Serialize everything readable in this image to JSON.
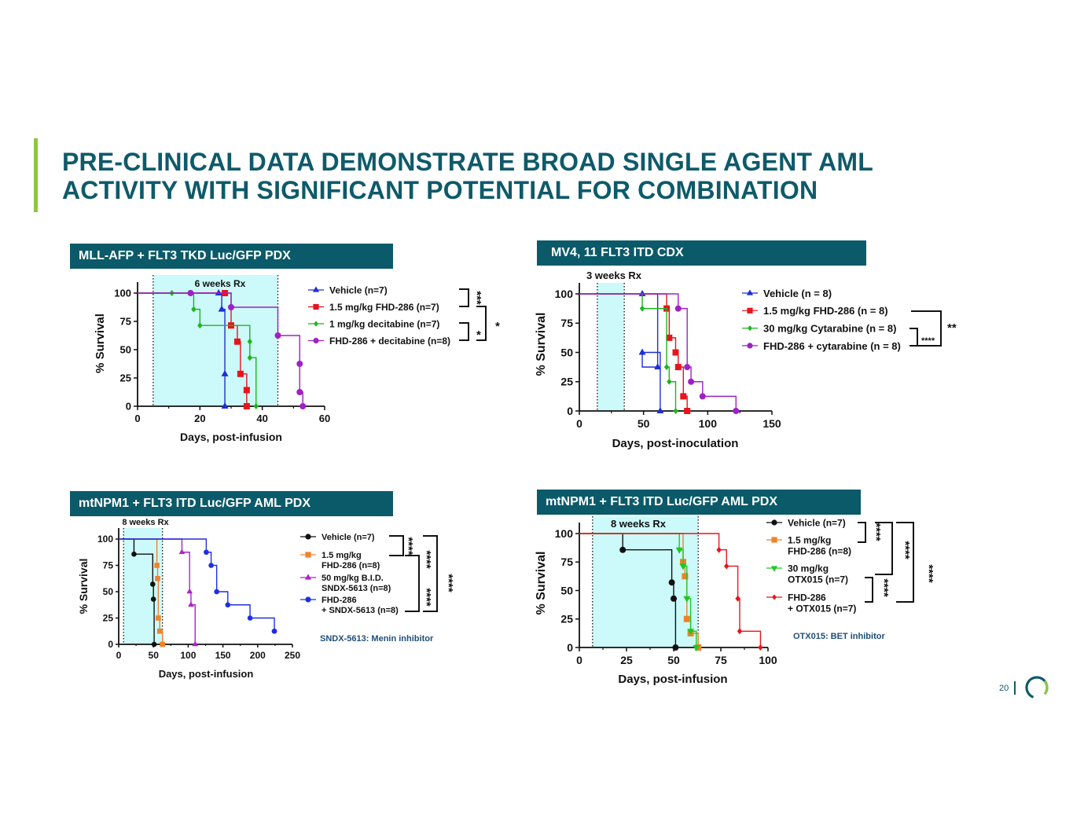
{
  "title": {
    "line1": "PRE-CLINICAL DATA DEMONSTRATE BROAD SINGLE AGENT AML",
    "line2": "ACTIVITY WITH SIGNIFICANT POTENTIAL FOR COMBINATION"
  },
  "panels": {
    "p1": "MLL-AFP + FLT3 TKD Luc/GFP PDX",
    "p2": "MV4, 11 FLT3 ITD CDX",
    "p3": "mtNPM1 + FLT3 ITD Luc/GFP AML PDX",
    "p4": "mtNPM1 + FLT3 ITD Luc/GFP AML PDX"
  },
  "footer": {
    "page_number": "20"
  },
  "colors": {
    "accent": "#8dc63f",
    "brand": "#0b5a6a",
    "shade": "#ccfafa"
  },
  "chart_data": [
    {
      "id": "c1",
      "type": "line",
      "step": true,
      "xlabel": "Days, post-infusion",
      "ylabel": "% Survival",
      "xlim": [
        0,
        60
      ],
      "ylim": [
        0,
        100
      ],
      "xticks": [
        0,
        20,
        40,
        60
      ],
      "yticks": [
        0,
        25,
        50,
        75,
        100
      ],
      "shade": {
        "from": 5,
        "to": 45,
        "label": "6 weeks Rx"
      },
      "series": [
        {
          "name": "Vehicle (n=7)",
          "color": "#1f2fd6",
          "marker": "triangle",
          "x": [
            0,
            26,
            27,
            28
          ],
          "y": [
            100,
            100,
            85.7,
            28.6
          ],
          "endX": 28,
          "endY": 0
        },
        {
          "name": "1.5 mg/kg FHD-286 (n=7)",
          "color": "#e8141c",
          "marker": "square",
          "x": [
            0,
            28,
            30,
            32,
            33,
            35
          ],
          "y": [
            100,
            100,
            71.4,
            57.1,
            28.6,
            14.3
          ],
          "endX": 35,
          "endY": 0
        },
        {
          "name": "1 mg/kg decitabine (n=7)",
          "color": "#1fb41f",
          "marker": "diamond",
          "x": [
            0,
            11,
            18,
            20,
            36
          ],
          "y": [
            100,
            100,
            85.7,
            71.4,
            57.1
          ],
          "endX": 38,
          "endY": 0,
          "extra": [
            [
              36,
              42.9
            ]
          ]
        },
        {
          "name": "FHD-286 + decitabine (n=8)",
          "color": "#a020c8",
          "marker": "circle",
          "x": [
            0,
            17,
            30,
            45,
            52
          ],
          "y": [
            100,
            100,
            87.5,
            62.5,
            37.5
          ],
          "endX": 53,
          "endY": 0,
          "extra": [
            [
              52,
              12.5
            ]
          ]
        }
      ],
      "significance": [
        {
          "label": "***",
          "pair": "Vehicle vs 1.5 mg/kg FHD-286"
        },
        {
          "label": "*",
          "pair": "decitabine vs FHD-286 + decitabine"
        },
        {
          "label": "*",
          "pair": "FHD-286 vs FHD-286 + decitabine"
        }
      ]
    },
    {
      "id": "c2",
      "type": "line",
      "step": true,
      "xlabel": "Days, post-inoculation",
      "ylabel": "% Survival",
      "xlim": [
        0,
        150
      ],
      "ylim": [
        0,
        100
      ],
      "xticks": [
        0,
        50,
        100,
        150
      ],
      "yticks": [
        0,
        25,
        50,
        75,
        100
      ],
      "shade": {
        "from": 14,
        "to": 35,
        "label": "3 weeks Rx"
      },
      "series": [
        {
          "name": "Vehicle (n = 8)",
          "color": "#1f2fd6",
          "marker": "triangle",
          "x": [
            0,
            49,
            61
          ],
          "y": [
            100,
            100,
            37.5
          ],
          "endX": 63,
          "endY": 0,
          "extra": [
            [
              49,
              50
            ]
          ]
        },
        {
          "name": "1.5 mg/kg FHD-286 (n = 8)",
          "color": "#e8141c",
          "marker": "square",
          "x": [
            0,
            68,
            70,
            75,
            77,
            81
          ],
          "y": [
            100,
            87.5,
            62.5,
            50,
            37.5,
            12.5
          ],
          "endX": 84,
          "endY": 0
        },
        {
          "name": "30 mg/kg Cytarabine (n = 8)",
          "color": "#1fb41f",
          "marker": "diamond",
          "x": [
            0,
            49,
            68,
            70
          ],
          "y": [
            100,
            87.5,
            37.5,
            25
          ],
          "endX": 75,
          "endY": 0
        },
        {
          "name": "FHD-286 + cytarabine (n = 8)",
          "color": "#a020c8",
          "marker": "circle",
          "x": [
            0,
            77,
            84,
            87,
            96
          ],
          "y": [
            100,
            87.5,
            37.5,
            25,
            12.5
          ],
          "endX": 122,
          "endY": 0
        }
      ],
      "significance": [
        {
          "label": "**",
          "pair": "FHD-286 vs FHD-286 + cytarabine"
        },
        {
          "label": "****",
          "pair": "Cytarabine vs FHD-286 + cytarabine"
        }
      ]
    },
    {
      "id": "c3",
      "type": "line",
      "step": true,
      "xlabel": "Days, post-infusion",
      "ylabel": "% Survival",
      "xlim": [
        0,
        250
      ],
      "ylim": [
        0,
        100
      ],
      "xticks": [
        0,
        50,
        100,
        150,
        200,
        250
      ],
      "yticks": [
        0,
        25,
        50,
        75,
        100
      ],
      "shade": {
        "from": 7,
        "to": 63,
        "label": "8 weeks  Rx"
      },
      "series": [
        {
          "name": "Vehicle (n=7)",
          "color": "#111111",
          "marker": "circle",
          "x": [
            0,
            22,
            49,
            50
          ],
          "y": [
            100,
            85.7,
            57.1,
            42.9
          ],
          "endX": 51,
          "endY": 0
        },
        {
          "name": "1.5 mg/kg FHD-286 (n=8)",
          "color": "#f0822a",
          "marker": "square",
          "x": [
            0,
            55,
            56,
            57,
            59
          ],
          "y": [
            100,
            75,
            62.5,
            25,
            12.5
          ],
          "endX": 63,
          "endY": 0
        },
        {
          "name": "50 mg/kg B.I.D. SNDX-5613 (n=8)",
          "color": "#b020d0",
          "marker": "triangle",
          "x": [
            0,
            91,
            102,
            104
          ],
          "y": [
            100,
            87.5,
            50,
            37.5
          ],
          "endX": 110,
          "endY": 0
        },
        {
          "name": "FHD-286 + SNDX-5613 (n=8)",
          "color": "#1f2fe0",
          "marker": "circle",
          "x": [
            0,
            126,
            133,
            141,
            157,
            189,
            224
          ],
          "y": [
            100,
            87.5,
            75,
            50,
            37.5,
            25,
            12.5
          ],
          "endX": 224,
          "endY": 12.5
        }
      ],
      "significance": [
        {
          "label": "****",
          "pair": "Vehicle vs FHD-286"
        },
        {
          "label": "****",
          "pair": "FHD-286 vs combination"
        },
        {
          "label": "****",
          "pair": "SNDX-5613 vs combination"
        },
        {
          "label": "****",
          "pair": "Vehicle vs combination"
        }
      ],
      "note": "SNDX-5613: Menin inhibitor"
    },
    {
      "id": "c4",
      "type": "line",
      "step": true,
      "xlabel": "Days, post-infusion",
      "ylabel": "% Survival",
      "xlim": [
        0,
        100
      ],
      "ylim": [
        0,
        100
      ],
      "xticks": [
        0,
        25,
        50,
        75,
        100
      ],
      "yticks": [
        0,
        25,
        50,
        75,
        100
      ],
      "shade": {
        "from": 7,
        "to": 63,
        "label": "8 weeks  Rx"
      },
      "series": [
        {
          "name": "Vehicle (n=7)",
          "color": "#111111",
          "marker": "circle",
          "x": [
            0,
            23,
            49,
            50
          ],
          "y": [
            100,
            85.7,
            57.1,
            42.9
          ],
          "endX": 51,
          "endY": 0
        },
        {
          "name": "1.5 mg/kg FHD-286 (n=8)",
          "color": "#f0822a",
          "marker": "square",
          "x": [
            0,
            55,
            56,
            57,
            59
          ],
          "y": [
            100,
            75,
            62.5,
            25,
            12.5
          ],
          "endX": 63,
          "endY": 0
        },
        {
          "name": "30 mg/kg OTX015 (n=7)",
          "color": "#1fc81f",
          "marker": "triangle-down",
          "x": [
            0,
            53,
            55,
            57,
            59
          ],
          "y": [
            100,
            85.7,
            71.4,
            42.9,
            14.3
          ],
          "endX": 62,
          "endY": 0
        },
        {
          "name": "FHD-286 + OTX015 (n=7)",
          "color": "#e8141c",
          "marker": "diamond",
          "x": [
            0,
            74,
            78,
            84,
            85
          ],
          "y": [
            100,
            85.7,
            71.4,
            42.9,
            14.3
          ],
          "endX": 96,
          "endY": 0
        }
      ],
      "significance": [
        {
          "label": "****",
          "pair": "Vehicle vs FHD-286"
        },
        {
          "label": "****",
          "pair": "OTX015 vs combination"
        },
        {
          "label": "****",
          "pair": "FHD-286 vs combination"
        },
        {
          "label": "****",
          "pair": "Vehicle vs combination"
        }
      ],
      "note": "OTX015: BET inhibitor"
    }
  ],
  "legends": {
    "c1": [
      "Vehicle (n=7)",
      "1.5 mg/kg FHD-286 (n=7)",
      "1 mg/kg decitabine (n=7)",
      "FHD-286 + decitabine (n=8)"
    ],
    "c2": [
      "Vehicle (n = 8)",
      "1.5 mg/kg FHD-286 (n = 8)",
      "30 mg/kg Cytarabine (n = 8)",
      "FHD-286 + cytarabine (n = 8)"
    ],
    "c3": [
      [
        "Vehicle (n=7)"
      ],
      [
        "1.5 mg/kg",
        "FHD-286 (n=8)"
      ],
      [
        "50 mg/kg B.I.D.",
        "SNDX-5613 (n=8)"
      ],
      [
        "FHD-286",
        "+ SNDX-5613 (n=8)"
      ]
    ],
    "c4": [
      [
        "Vehicle (n=7)"
      ],
      [
        "1.5 mg/kg",
        "FHD-286 (n=8)"
      ],
      [
        "30 mg/kg",
        "OTX015 (n=7)"
      ],
      [
        "FHD-286",
        "+ OTX015 (n=7)"
      ]
    ]
  }
}
